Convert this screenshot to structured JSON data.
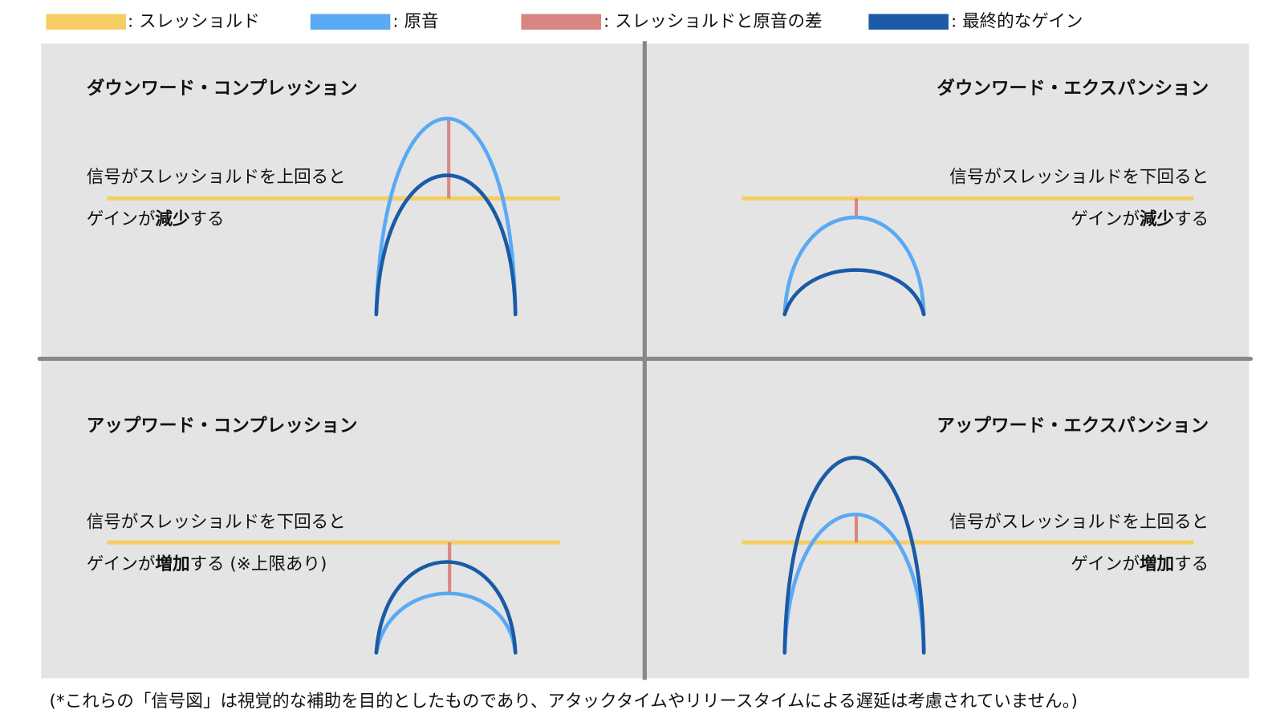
{
  "legend": [
    ": スレッショルド",
    ": 原音",
    ": スレッショルドと原音の差",
    ": 最終的なゲイン"
  ],
  "quadrants": [
    {
      "title": "ダウンワード・コンプレッション",
      "line1": "信号がスレッショルドを上回ると",
      "line2": {
        "before": "ゲインが",
        "bold": "減少",
        "after": "する"
      }
    },
    {
      "title": "ダウンワード・エクスパンション",
      "line1": "信号がスレッショルドを下回ると",
      "line2": {
        "before": "ゲインが",
        "bold": "減少",
        "after": "する"
      }
    },
    {
      "title": "アップワード・コンプレッション",
      "line1": "信号がスレッショルドを下回ると",
      "line2": {
        "before": "ゲインが",
        "bold": "増加",
        "after": "する (※上限あり)"
      }
    },
    {
      "title": "アップワード・エクスパンション",
      "line1": "信号がスレッショルドを上回ると",
      "line2": {
        "before": "ゲインが",
        "bold": "増加",
        "after": "する"
      }
    }
  ],
  "footnote": "(*これらの「信号図」は視覚的な補助を目的としたものであり、アタックタイムやリリースタイムによる遅延は考慮されていません。)"
}
